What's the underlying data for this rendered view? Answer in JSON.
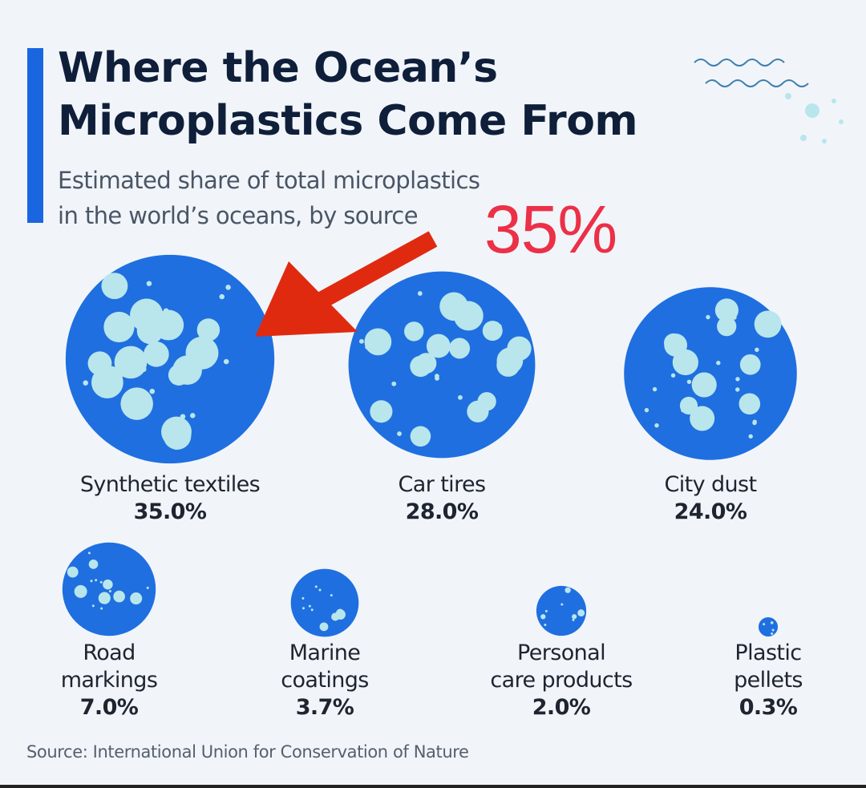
{
  "title_lines": [
    "Where the Ocean’s",
    "Microplastics Come From"
  ],
  "subtitle_lines": [
    "Estimated share of total microplastics",
    "in the world’s oceans, by source"
  ],
  "annotation": "35%",
  "source": "Source: International Union for Conservation of Nature",
  "colors": {
    "accent": "#1a66e0",
    "bubble": "#1f6fe0",
    "speck": "#b8e6ec",
    "arrow": "#e02a10",
    "annotation": "#ec3048"
  },
  "chart_data": {
    "type": "bubble",
    "title": "Where the Ocean’s Microplastics Come From",
    "subtitle": "Estimated share of total microplastics in the world’s oceans, by source",
    "unit": "%",
    "categories": [
      "Synthetic textiles",
      "Car tires",
      "City dust",
      "Road markings",
      "Marine coatings",
      "Personal care products",
      "Plastic pellets"
    ],
    "label_lines": [
      [
        "Synthetic textiles"
      ],
      [
        "Car tires"
      ],
      [
        "City dust"
      ],
      [
        "Road",
        "markings"
      ],
      [
        "Marine",
        "coatings"
      ],
      [
        "Personal",
        "care products"
      ],
      [
        "Plastic",
        "pellets"
      ]
    ],
    "value_labels": [
      "35.0%",
      "28.0%",
      "24.0%",
      "7.0%",
      "3.7%",
      "2.0%",
      "0.3%"
    ],
    "values": [
      35.0,
      28.0,
      24.0,
      7.0,
      3.7,
      2.0,
      0.3
    ]
  }
}
